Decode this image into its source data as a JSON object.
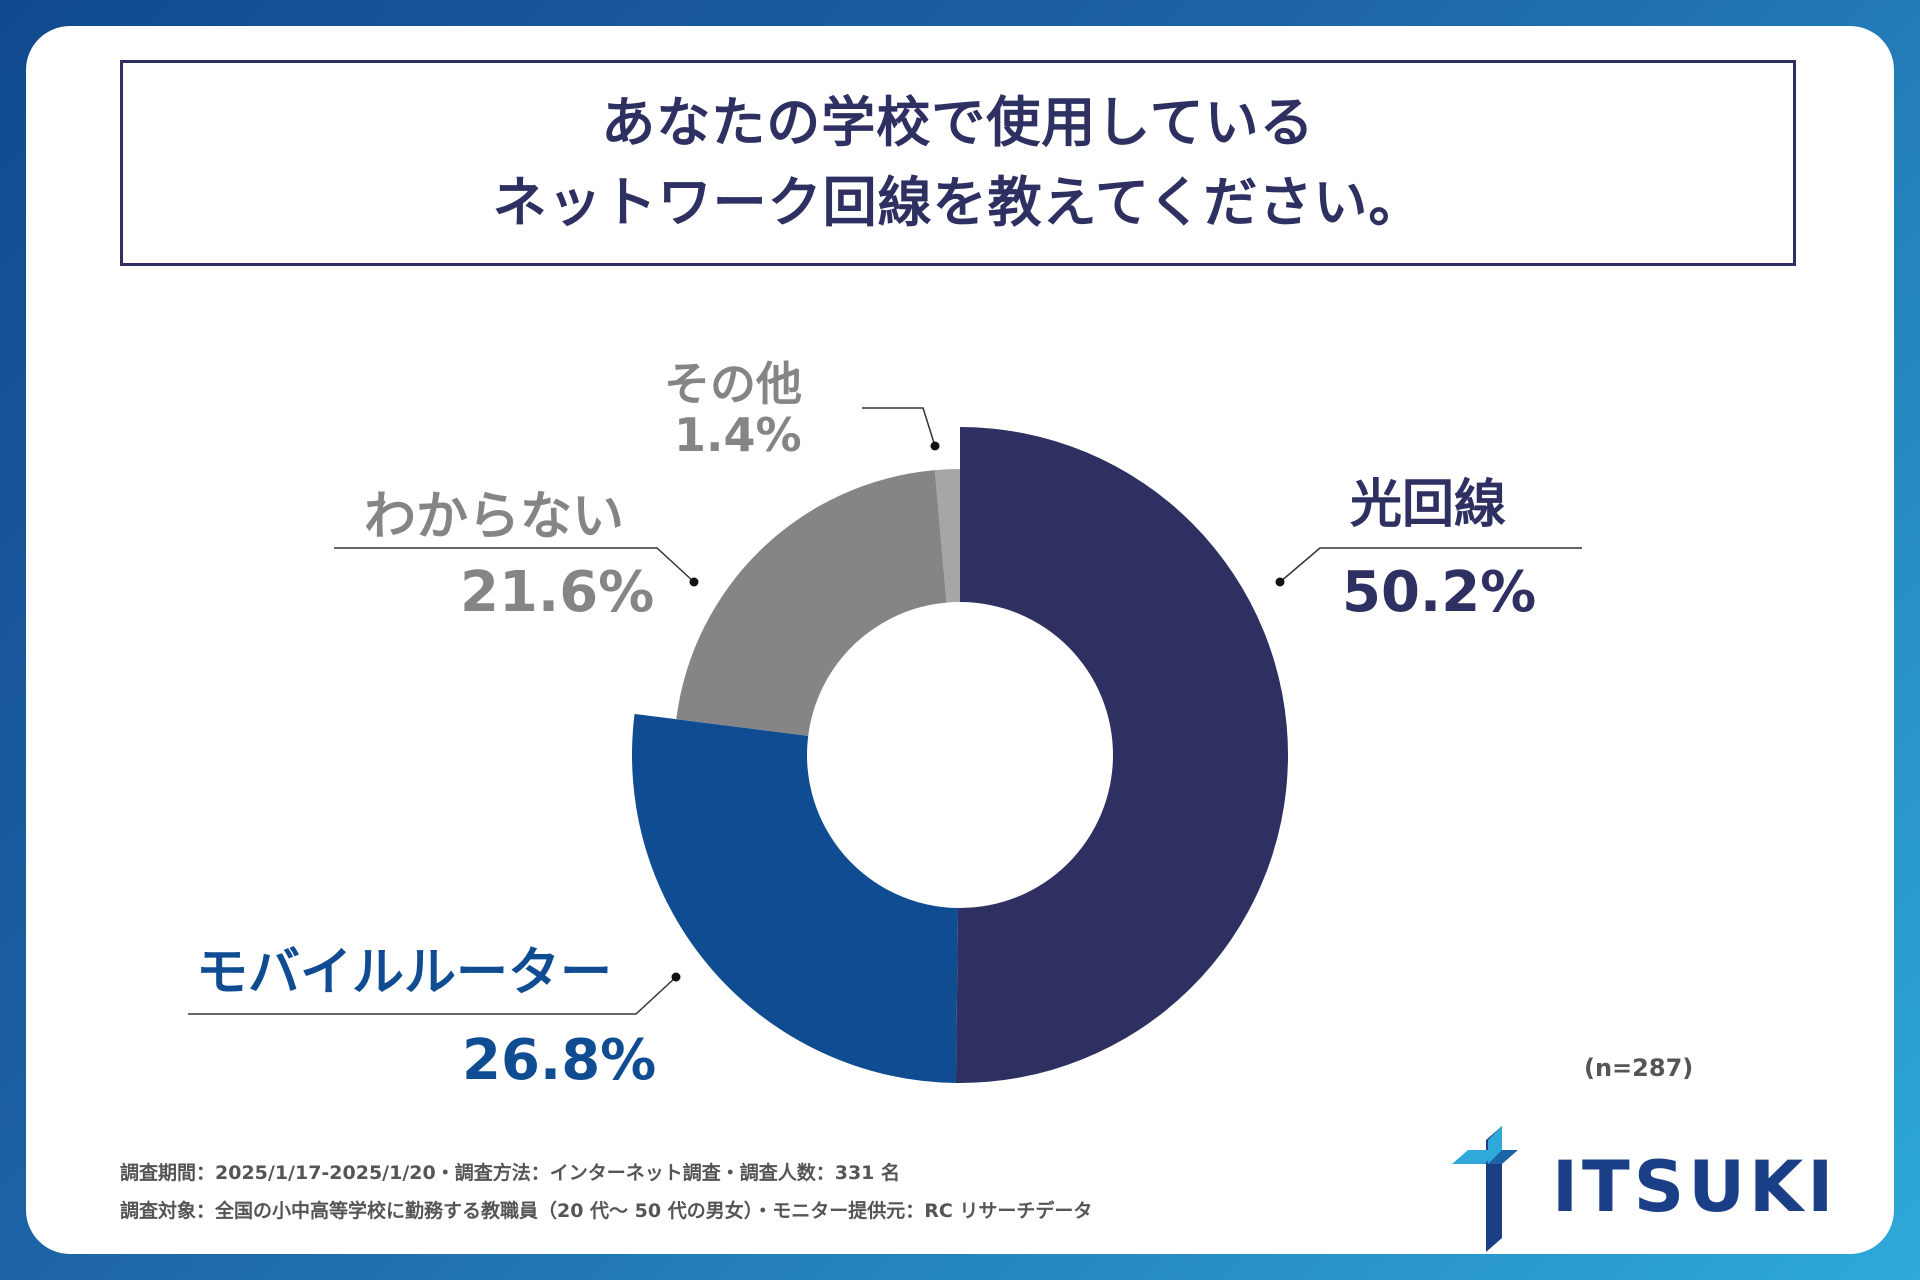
{
  "title": {
    "line1": "あなたの学校で使用している",
    "line2": "ネットワーク回線を教えてください。"
  },
  "chart_data": {
    "type": "pie",
    "variant": "donut",
    "slices": [
      {
        "label": "光回線",
        "value": 50.2,
        "display": "50.2%",
        "color": "#2e3061"
      },
      {
        "label": "モバイルルーター",
        "value": 26.8,
        "display": "26.8%",
        "color": "#0f4c92"
      },
      {
        "label": "わからない",
        "value": 21.6,
        "display": "21.6%",
        "color": "#858585"
      },
      {
        "label": "その他",
        "value": 1.4,
        "display": "1.4%",
        "color": "#a6a6a6"
      }
    ],
    "legend": "none",
    "sample_size": "(n=287)"
  },
  "footnotes": {
    "line1": "調査期間：2025/1/17-2025/1/20・調査方法：インターネット調査・調査人数：331 名",
    "line2": "調査対象：全国の小中高等学校に勤務する教職員（20 代～ 50 代の男女）・モニター提供元：RC リサーチデータ"
  },
  "logo": {
    "text": "ITSUKI",
    "icon": "itsuki-logo-icon",
    "color": "#1a3f86"
  }
}
